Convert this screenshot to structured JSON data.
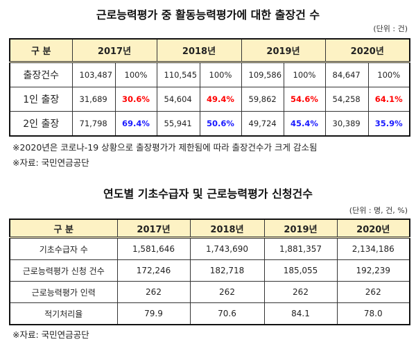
{
  "table1": {
    "title": "근로능력평가 중 활동능력평가에 대한 출장건 수",
    "unit": "(단위 : 건)",
    "header": [
      "구 분",
      "2017년",
      "2018년",
      "2019년",
      "2020년"
    ],
    "rows": [
      {
        "label": "출장건수",
        "cells": [
          [
            "103,487",
            "100%"
          ],
          [
            "110,545",
            "100%"
          ],
          [
            "109,586",
            "100%"
          ],
          [
            "84,647",
            "100%"
          ]
        ]
      },
      {
        "label": "1인 출장",
        "cells": [
          [
            "31,689",
            "30.6%"
          ],
          [
            "54,604",
            "49.4%"
          ],
          [
            "59,862",
            "54.6%"
          ],
          [
            "54,258",
            "64.1%"
          ]
        ]
      },
      {
        "label": "2인 출장",
        "cells": [
          [
            "71,798",
            "69.4%"
          ],
          [
            "55,941",
            "50.6%"
          ],
          [
            "49,724",
            "45.4%"
          ],
          [
            "30,389",
            "35.9%"
          ]
        ]
      }
    ],
    "notes": [
      "※2020년은 코로나-19 상황으로 출장평가가 제한됨에 따라 출장건수가 크게 감소됨",
      "※자료: 국민연금공단"
    ]
  },
  "table2": {
    "title": "연도별 기초수급자 및 근로능력평가 신청건수",
    "unit": "(단위 : 명, 건, %)",
    "header": [
      "구 분",
      "2017년",
      "2018년",
      "2019년",
      "2020년"
    ],
    "rows": [
      {
        "label": "기초수급자 수",
        "values": [
          "1,581,646",
          "1,743,690",
          "1,881,357",
          "2,134,186"
        ]
      },
      {
        "label": "근로능력평가 신청 건수",
        "values": [
          "172,246",
          "182,718",
          "185,055",
          "192,239"
        ]
      },
      {
        "label": "근로능력평가 인력",
        "values": [
          "262",
          "262",
          "262",
          "262"
        ]
      },
      {
        "label": "적기처리율",
        "values": [
          "79.9",
          "70.6",
          "84.1",
          "78.0"
        ]
      }
    ],
    "notes": [
      "※자료: 국민연금공단"
    ]
  },
  "colors": {
    "header_bg": "#fdf2c4",
    "one_person": "#ff0000",
    "two_person": "#1a1aff"
  }
}
